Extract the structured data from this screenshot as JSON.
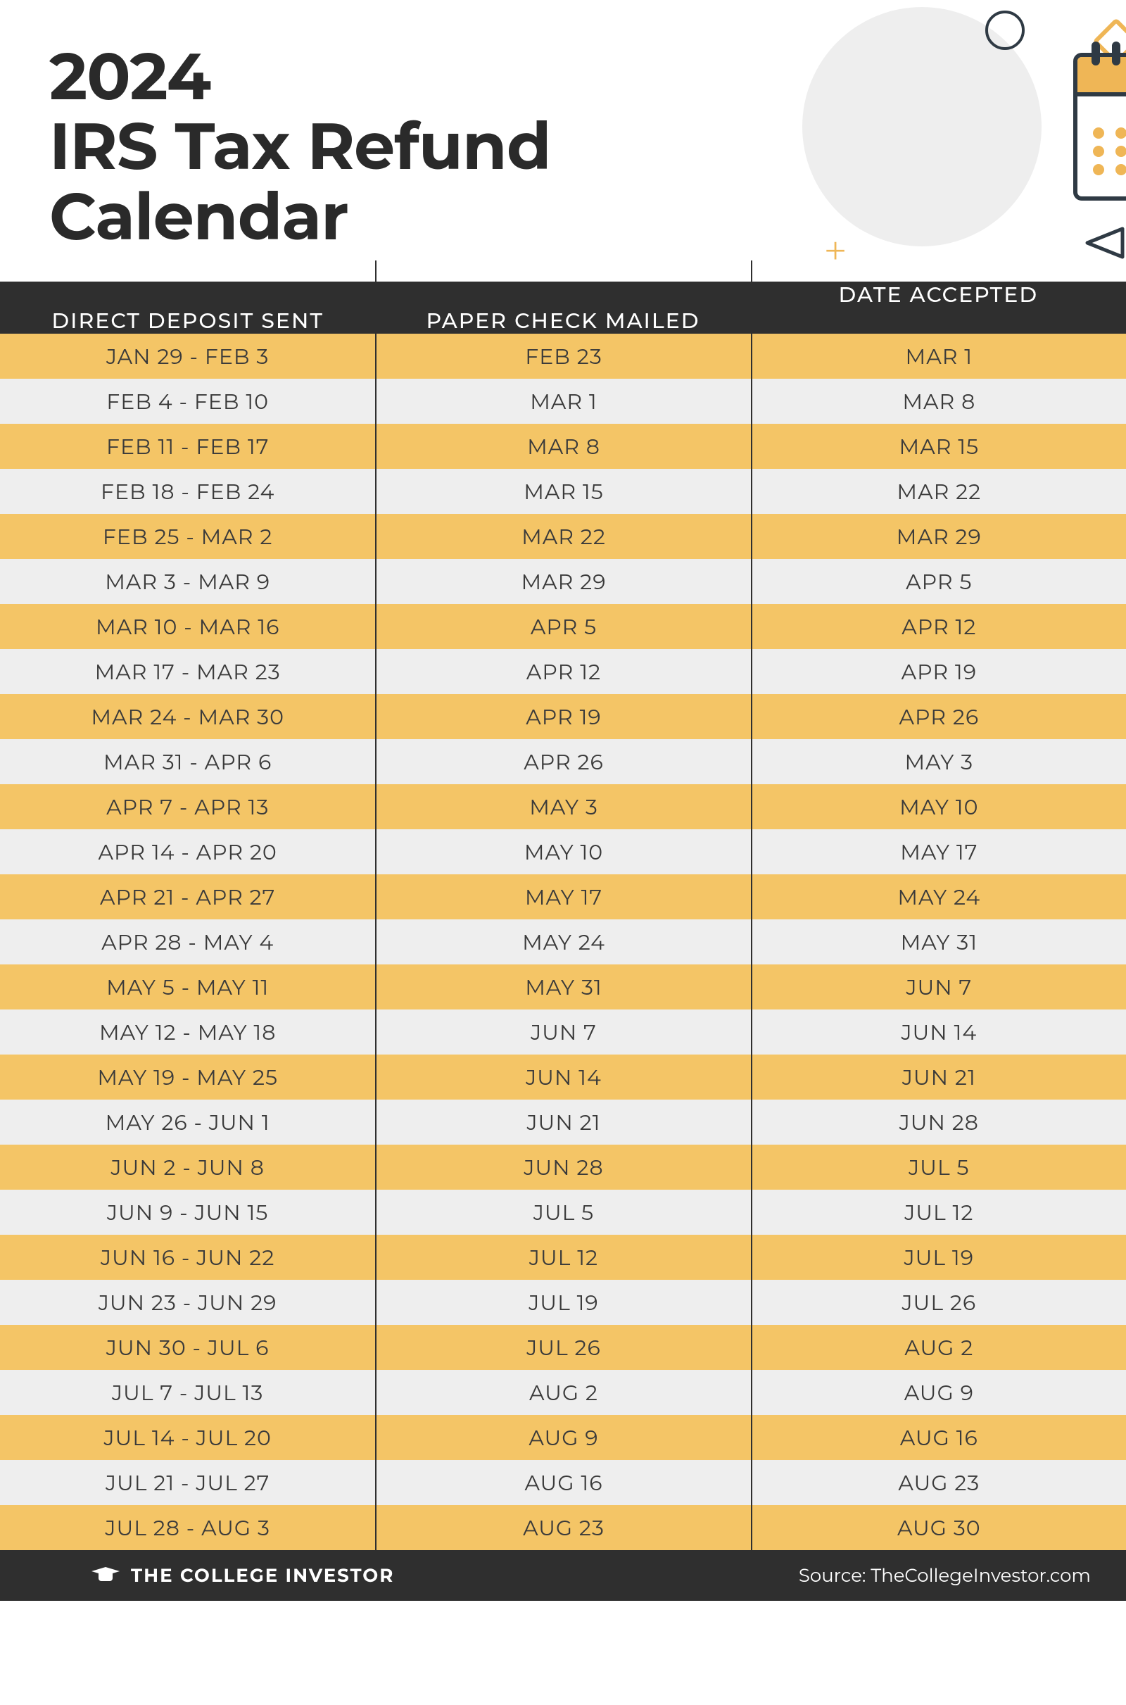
{
  "title_line1": "2024",
  "title_line2": "IRS Tax Refund",
  "title_line3": "Calendar",
  "calendar_year": "2024",
  "colors": {
    "header_bg": "#2f2f2f",
    "row_odd": "#f4c566",
    "row_even": "#eeeeee",
    "text": "#3a3a3a",
    "accent": "#efb656",
    "dark": "#2f3a44"
  },
  "table": {
    "columns": [
      "DATE ACCEPTED",
      "DIRECT DEPOSIT SENT",
      "PAPER CHECK MAILED"
    ],
    "rows": [
      [
        "JAN 29 - FEB 3",
        "FEB 23",
        "MAR 1"
      ],
      [
        "FEB 4 - FEB 10",
        "MAR 1",
        "MAR 8"
      ],
      [
        "FEB 11 - FEB 17",
        "MAR 8",
        "MAR 15"
      ],
      [
        "FEB 18 - FEB 24",
        "MAR 15",
        "MAR 22"
      ],
      [
        "FEB 25 - MAR 2",
        "MAR 22",
        "MAR 29"
      ],
      [
        "MAR 3 - MAR 9",
        "MAR 29",
        "APR 5"
      ],
      [
        "MAR 10 - MAR 16",
        "APR 5",
        "APR 12"
      ],
      [
        "MAR 17 - MAR 23",
        "APR 12",
        "APR 19"
      ],
      [
        "MAR 24 - MAR 30",
        "APR 19",
        "APR 26"
      ],
      [
        "MAR 31 - APR 6",
        "APR 26",
        "MAY 3"
      ],
      [
        "APR 7 - APR 13",
        "MAY 3",
        "MAY 10"
      ],
      [
        "APR 14 - APR 20",
        "MAY 10",
        "MAY 17"
      ],
      [
        "APR 21 - APR 27",
        "MAY 17",
        "MAY 24"
      ],
      [
        "APR 28 - MAY 4",
        "MAY 24",
        "MAY 31"
      ],
      [
        "MAY 5 - MAY 11",
        "MAY 31",
        "JUN 7"
      ],
      [
        "MAY 12 - MAY 18",
        "JUN 7",
        "JUN 14"
      ],
      [
        "MAY 19 - MAY 25",
        "JUN 14",
        "JUN 21"
      ],
      [
        "MAY 26 - JUN 1",
        "JUN 21",
        "JUN 28"
      ],
      [
        "JUN 2 - JUN 8",
        "JUN 28",
        "JUL 5"
      ],
      [
        "JUN 9 - JUN 15",
        "JUL 5",
        "JUL 12"
      ],
      [
        "JUN 16 - JUN 22",
        "JUL 12",
        "JUL 19"
      ],
      [
        "JUN 23 - JUN 29",
        "JUL 19",
        "JUL 26"
      ],
      [
        "JUN 30 - JUL 6",
        "JUL 26",
        "AUG 2"
      ],
      [
        "JUL 7 - JUL 13",
        "AUG 2",
        "AUG 9"
      ],
      [
        "JUL 14 - JUL 20",
        "AUG 9",
        "AUG 16"
      ],
      [
        "JUL 21 - JUL 27",
        "AUG 16",
        "AUG 23"
      ],
      [
        "JUL 28 - AUG 3",
        "AUG 23",
        "AUG 30"
      ]
    ]
  },
  "footer": {
    "brand": "THE COLLEGE INVESTOR",
    "source": "Source: TheCollegeInvestor.com"
  }
}
